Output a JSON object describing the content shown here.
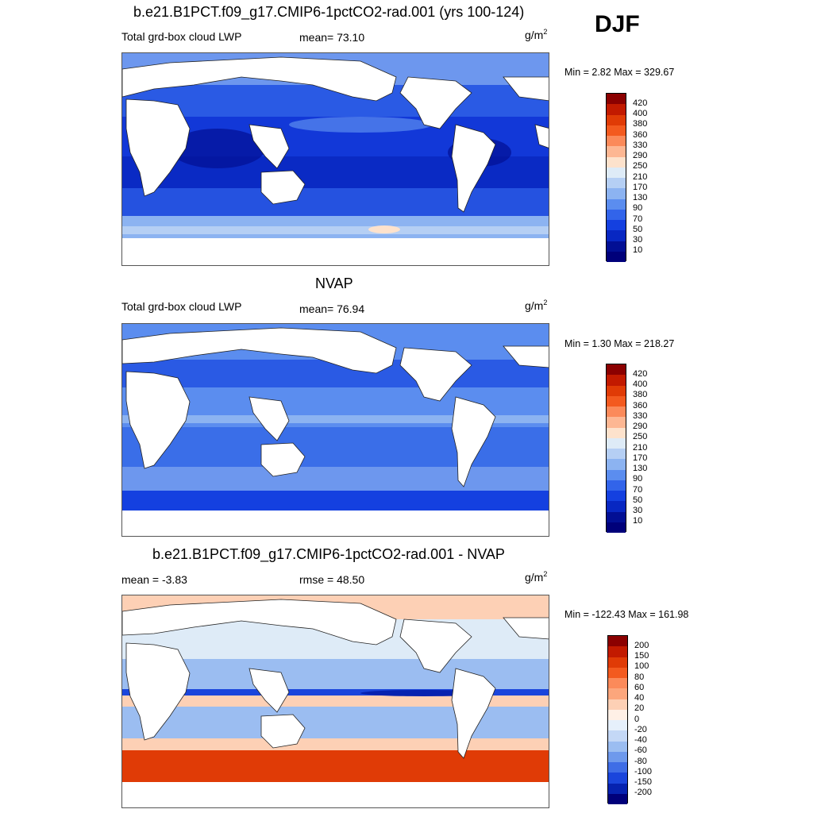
{
  "season": "DJF",
  "panels": [
    {
      "title": "b.e21.B1PCT.f09_g17.CMIP6-1pctCO2-rad.001 (yrs 100-124)",
      "left_label": "Total grd-box cloud LWP",
      "center_label": "mean=  73.10",
      "units_base": "g/m",
      "units_exp": "2",
      "minmax": "Min =   2.82 Max = 329.67",
      "cbar_ticks": [
        "420",
        "400",
        "380",
        "360",
        "330",
        "290",
        "250",
        "210",
        "170",
        "130",
        "90",
        "70",
        "50",
        "30",
        "10"
      ],
      "cbar_colors": [
        "#8b0000",
        "#c21a00",
        "#e03b06",
        "#f35a1f",
        "#fb8a5a",
        "#fdb793",
        "#fde2cc",
        "#deebf7",
        "#b5cff4",
        "#8cb3f1",
        "#5b8def",
        "#3264ea",
        "#1440e0",
        "#0827c2",
        "#020f94",
        "#00007a"
      ]
    },
    {
      "title": "NVAP",
      "left_label": "Total grd-box cloud LWP",
      "center_label": "mean=  76.94",
      "units_base": "g/m",
      "units_exp": "2",
      "minmax": "Min =   1.30 Max = 218.27",
      "cbar_ticks": [
        "420",
        "400",
        "380",
        "360",
        "330",
        "290",
        "250",
        "210",
        "170",
        "130",
        "90",
        "70",
        "50",
        "30",
        "10"
      ],
      "cbar_colors": [
        "#8b0000",
        "#c21a00",
        "#e03b06",
        "#f35a1f",
        "#fb8a5a",
        "#fdb793",
        "#fde2cc",
        "#deebf7",
        "#b5cff4",
        "#8cb3f1",
        "#5b8def",
        "#3264ea",
        "#1440e0",
        "#0827c2",
        "#020f94",
        "#00007a"
      ]
    },
    {
      "title": "b.e21.B1PCT.f09_g17.CMIP6-1pctCO2-rad.001 - NVAP",
      "left_label": "mean =  -3.83",
      "center_label": "rmse =  48.50",
      "units_base": "g/m",
      "units_exp": "2",
      "minmax": "Min = -122.43 Max = 161.98",
      "cbar_ticks": [
        "200",
        "150",
        "100",
        "80",
        "60",
        "40",
        "20",
        "0",
        "-20",
        "-40",
        "-60",
        "-80",
        "-100",
        "-150",
        "-200"
      ],
      "cbar_colors": [
        "#8b0000",
        "#c21a00",
        "#e03b06",
        "#f35a1f",
        "#fb8a5a",
        "#fca67c",
        "#fdd0b5",
        "#fff0e6",
        "#e6f0fb",
        "#c4d8f6",
        "#9bbdf1",
        "#6e99ec",
        "#3f6de6",
        "#1a45dc",
        "#0622b0",
        "#00007a"
      ]
    }
  ]
}
